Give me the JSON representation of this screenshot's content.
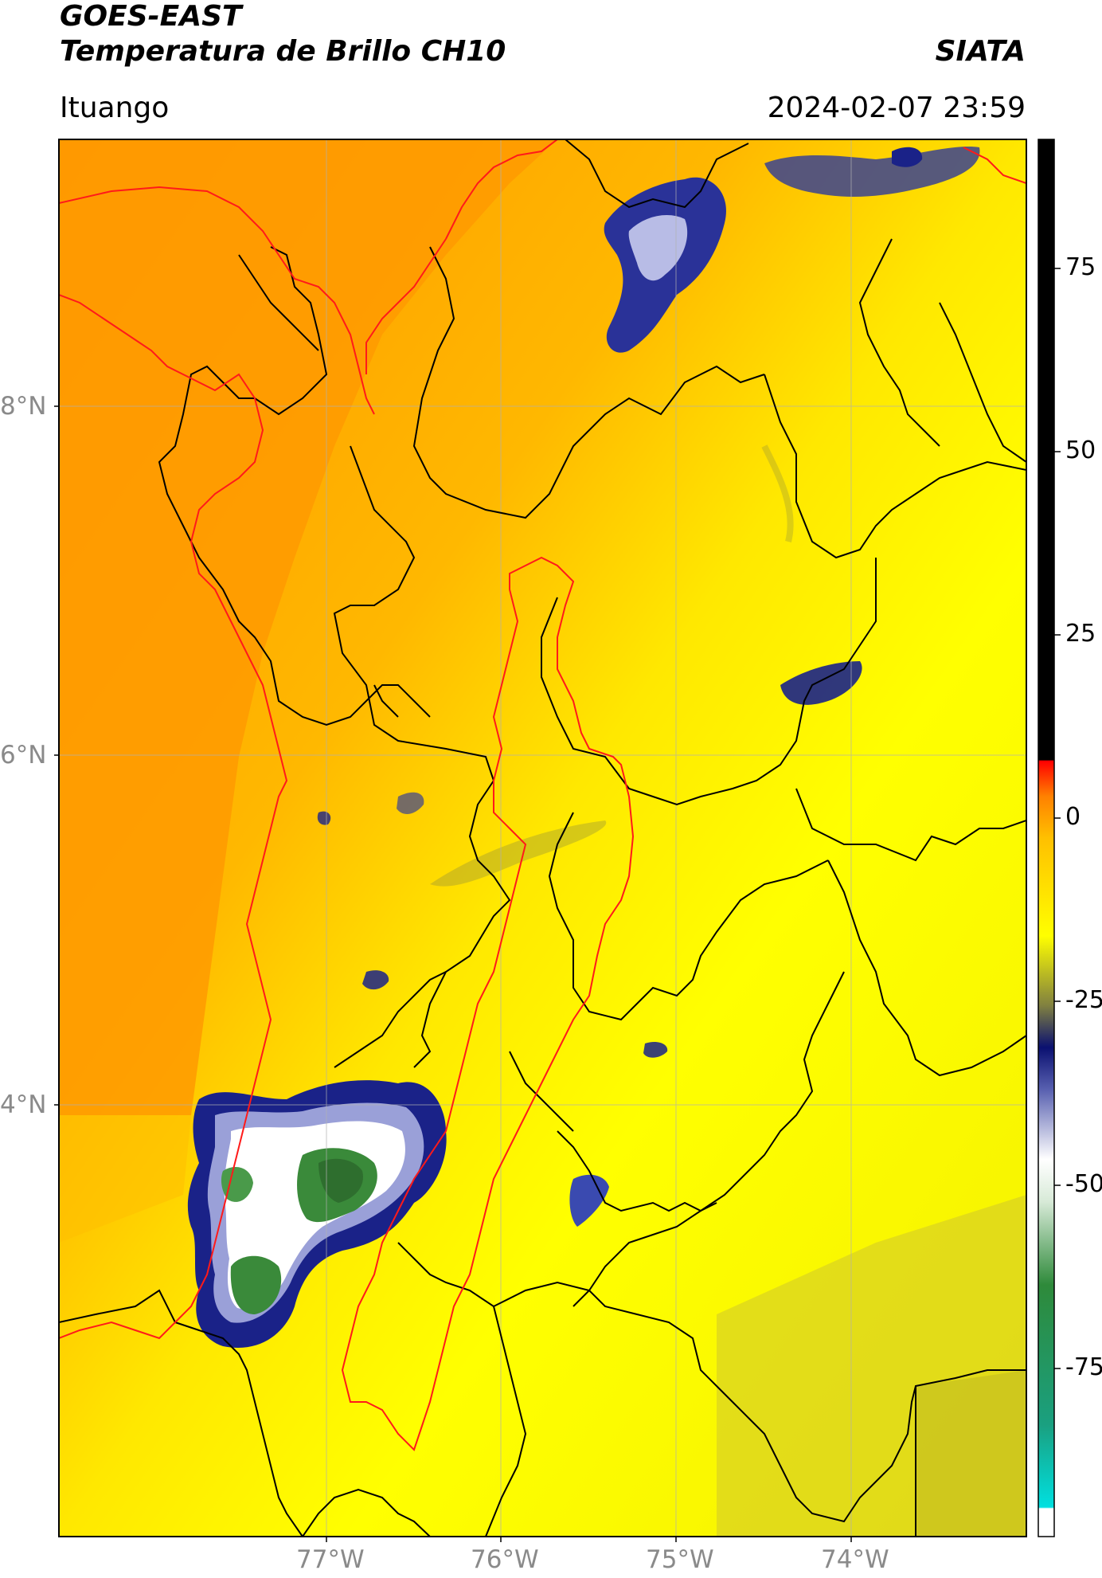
{
  "header": {
    "title_line1": "GOES-EAST",
    "title_line2": "Temperatura de Brillo CH10",
    "organization": "SIATA",
    "location": "Ituango",
    "datetime": "2024-02-07 23:59"
  },
  "map": {
    "lat_labels": [
      "8°N",
      "6°N",
      "4°N"
    ],
    "lon_labels": [
      "77°W",
      "76°W",
      "75°W",
      "74°W"
    ],
    "colors": {
      "warm_orange": "#ff9a00",
      "yellow": "#ffff00",
      "olive": "#d4cc28",
      "navy": "#101a80",
      "lavender": "#8a90cc",
      "white": "#ffffff",
      "green": "#3a8a3a",
      "watershed": "#ff0000",
      "boundaries": "#000000"
    }
  },
  "colorbar": {
    "ticks": [
      "75",
      "50",
      "25",
      "0",
      "-25",
      "-50",
      "-75"
    ],
    "stops": [
      "#ffffff",
      "#00d8d8",
      "#1aa080",
      "#2e8a3a",
      "#d8ead8",
      "#ffffff",
      "#5860b0",
      "#0a1070",
      "#808040",
      "#ffff00",
      "#ffa000",
      "#ff0000",
      "#000000"
    ]
  }
}
